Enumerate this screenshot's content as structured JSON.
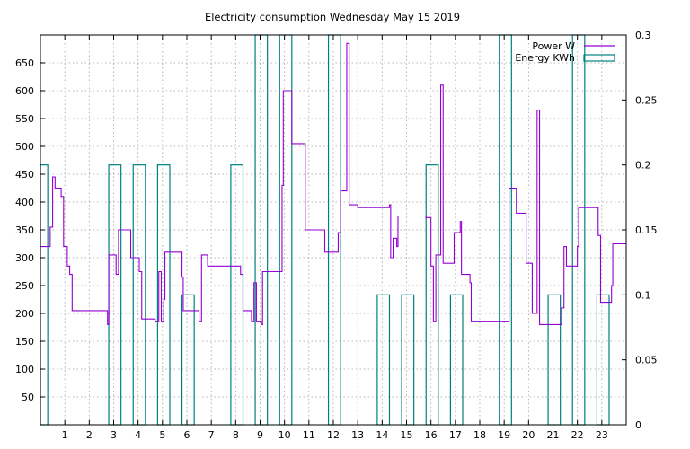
{
  "chart_data": {
    "type": "line",
    "title": "Electricity consumption Wednesday May 15 2019",
    "xlabel": "",
    "ylabel": "",
    "xlim": [
      0,
      24
    ],
    "ylim": [
      0,
      700
    ],
    "y2lim": [
      0,
      0.3
    ],
    "x_ticks": [
      1,
      2,
      3,
      4,
      5,
      6,
      7,
      8,
      9,
      10,
      11,
      12,
      13,
      14,
      15,
      16,
      17,
      18,
      19,
      20,
      21,
      22,
      23
    ],
    "y_ticks": [
      50,
      100,
      150,
      200,
      250,
      300,
      350,
      400,
      450,
      500,
      550,
      600,
      650
    ],
    "y2_ticks": [
      0,
      0.05,
      0.1,
      0.15,
      0.2,
      0.25,
      0.3
    ],
    "grid": true,
    "legend_position": "top-right",
    "series": [
      {
        "name": "Power W",
        "axis": "left",
        "color": "#9400d3",
        "style": "step",
        "points": [
          [
            0,
            320
          ],
          [
            0.4,
            355
          ],
          [
            0.5,
            445
          ],
          [
            0.6,
            425
          ],
          [
            0.85,
            410
          ],
          [
            0.95,
            320
          ],
          [
            1.1,
            285
          ],
          [
            1.2,
            270
          ],
          [
            1.3,
            205
          ],
          [
            2.7,
            205
          ],
          [
            2.75,
            180
          ],
          [
            2.8,
            305
          ],
          [
            3.1,
            270
          ],
          [
            3.2,
            350
          ],
          [
            3.7,
            300
          ],
          [
            4.05,
            275
          ],
          [
            4.15,
            190
          ],
          [
            4.7,
            185
          ],
          [
            4.85,
            275
          ],
          [
            4.95,
            185
          ],
          [
            5.05,
            225
          ],
          [
            5.1,
            310
          ],
          [
            5.8,
            265
          ],
          [
            5.85,
            205
          ],
          [
            6.5,
            185
          ],
          [
            6.6,
            305
          ],
          [
            6.85,
            285
          ],
          [
            8.2,
            270
          ],
          [
            8.3,
            205
          ],
          [
            8.65,
            185
          ],
          [
            8.75,
            255
          ],
          [
            8.85,
            185
          ],
          [
            9.05,
            180
          ],
          [
            9.1,
            275
          ],
          [
            9.9,
            430
          ],
          [
            9.95,
            600
          ],
          [
            10.3,
            505
          ],
          [
            10.85,
            350
          ],
          [
            11.65,
            310
          ],
          [
            12.2,
            345
          ],
          [
            12.3,
            420
          ],
          [
            12.55,
            685
          ],
          [
            12.65,
            395
          ],
          [
            13.0,
            390
          ],
          [
            14.3,
            395
          ],
          [
            14.35,
            300
          ],
          [
            14.45,
            335
          ],
          [
            14.6,
            320
          ],
          [
            14.65,
            375
          ],
          [
            15.8,
            372
          ],
          [
            16.0,
            285
          ],
          [
            16.1,
            185
          ],
          [
            16.2,
            305
          ],
          [
            16.4,
            610
          ],
          [
            16.5,
            290
          ],
          [
            16.95,
            345
          ],
          [
            17.2,
            365
          ],
          [
            17.25,
            270
          ],
          [
            17.6,
            255
          ],
          [
            17.65,
            185
          ],
          [
            19.2,
            425
          ],
          [
            19.5,
            380
          ],
          [
            19.9,
            290
          ],
          [
            20.15,
            200
          ],
          [
            20.35,
            565
          ],
          [
            20.45,
            180
          ],
          [
            21.35,
            210
          ],
          [
            21.45,
            320
          ],
          [
            21.55,
            285
          ],
          [
            22.0,
            320
          ],
          [
            22.05,
            390
          ],
          [
            22.85,
            340
          ],
          [
            22.95,
            220
          ],
          [
            23.4,
            250
          ],
          [
            23.45,
            325
          ],
          [
            24,
            325
          ]
        ]
      },
      {
        "name": "Energy KWh",
        "axis": "right",
        "color": "#008080",
        "style": "bars",
        "bars": [
          [
            0,
            0.3,
            0.2
          ],
          [
            2.8,
            3.3,
            0.2
          ],
          [
            3.8,
            4.3,
            0.2
          ],
          [
            4.8,
            5.3,
            0.2
          ],
          [
            5.8,
            6.3,
            0.1
          ],
          [
            7.8,
            8.3,
            0.2
          ],
          [
            8.8,
            9.3,
            0.3
          ],
          [
            9.8,
            10.3,
            0.3
          ],
          [
            11.8,
            12.3,
            0.3
          ],
          [
            13.8,
            14.3,
            0.1
          ],
          [
            14.8,
            15.3,
            0.1
          ],
          [
            15.8,
            16.3,
            0.2
          ],
          [
            16.8,
            17.3,
            0.1
          ],
          [
            18.8,
            19.3,
            0.3
          ],
          [
            20.8,
            21.3,
            0.1
          ],
          [
            21.8,
            22.3,
            0.3
          ],
          [
            22.8,
            23.3,
            0.1
          ]
        ]
      }
    ]
  }
}
